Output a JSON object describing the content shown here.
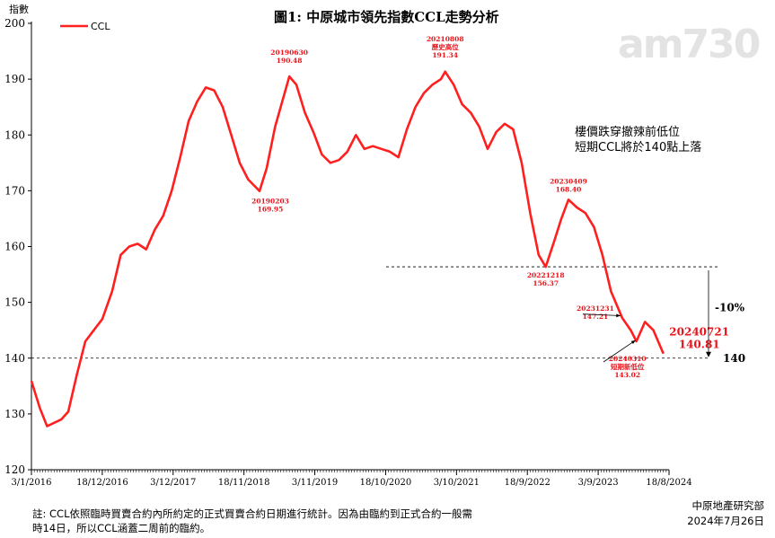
{
  "chart_data": {
    "type": "line",
    "title": "圖1: 中原城市領先指數CCL走勢分析",
    "ylabel": "指數",
    "ylim": [
      120,
      200
    ],
    "yticks": [
      120,
      130,
      140,
      150,
      160,
      170,
      180,
      190,
      200
    ],
    "xlim": [
      "2016-01-03",
      "2024-08-18"
    ],
    "xticks": [
      "3/1/2016",
      "18/12/2016",
      "3/12/2017",
      "18/11/2018",
      "3/11/2019",
      "18/10/2020",
      "3/10/2021",
      "18/9/2022",
      "3/9/2023",
      "18/8/2024"
    ],
    "grid": false,
    "legend": "top-left",
    "series": [
      {
        "name": "CCL",
        "color": "#ff1f1f",
        "points": [
          [
            "2016-01-03",
            135.9
          ],
          [
            "2016-02-14",
            131.0
          ],
          [
            "2016-03-20",
            127.8
          ],
          [
            "2016-04-24",
            128.4
          ],
          [
            "2016-05-29",
            129.0
          ],
          [
            "2016-07-03",
            130.4
          ],
          [
            "2016-08-14",
            137.0
          ],
          [
            "2016-09-25",
            143.0
          ],
          [
            "2016-11-06",
            145.0
          ],
          [
            "2016-12-18",
            147.0
          ],
          [
            "2017-02-05",
            152.0
          ],
          [
            "2017-03-19",
            158.5
          ],
          [
            "2017-04-30",
            160.0
          ],
          [
            "2017-06-11",
            160.5
          ],
          [
            "2017-07-23",
            159.5
          ],
          [
            "2017-09-03",
            163.0
          ],
          [
            "2017-10-15",
            165.5
          ],
          [
            "2017-11-26",
            170.0
          ],
          [
            "2018-01-07",
            176.0
          ],
          [
            "2018-02-18",
            182.5
          ],
          [
            "2018-04-01",
            186.0
          ],
          [
            "2018-05-13",
            188.5
          ],
          [
            "2018-06-24",
            188.0
          ],
          [
            "2018-08-05",
            185.0
          ],
          [
            "2018-09-16",
            180.0
          ],
          [
            "2018-10-28",
            175.0
          ],
          [
            "2018-12-09",
            172.0
          ],
          [
            "2019-02-03",
            169.95
          ],
          [
            "2019-03-10",
            174.0
          ],
          [
            "2019-04-21",
            181.5
          ],
          [
            "2019-05-26",
            186.0
          ],
          [
            "2019-06-30",
            190.48
          ],
          [
            "2019-08-04",
            189.0
          ],
          [
            "2019-09-15",
            184.0
          ],
          [
            "2019-10-27",
            180.5
          ],
          [
            "2019-12-08",
            176.5
          ],
          [
            "2020-01-19",
            175.0
          ],
          [
            "2020-03-01",
            175.5
          ],
          [
            "2020-04-12",
            177.0
          ],
          [
            "2020-05-24",
            180.0
          ],
          [
            "2020-07-05",
            177.5
          ],
          [
            "2020-08-16",
            178.0
          ],
          [
            "2020-09-27",
            177.5
          ],
          [
            "2020-11-08",
            177.0
          ],
          [
            "2020-12-20",
            176.0
          ],
          [
            "2021-01-31",
            181.0
          ],
          [
            "2021-03-14",
            185.0
          ],
          [
            "2021-04-25",
            187.5
          ],
          [
            "2021-06-06",
            189.0
          ],
          [
            "2021-07-18",
            190.0
          ],
          [
            "2021-08-08",
            191.34
          ],
          [
            "2021-09-19",
            189.0
          ],
          [
            "2021-10-31",
            185.5
          ],
          [
            "2021-12-12",
            184.0
          ],
          [
            "2022-01-23",
            181.5
          ],
          [
            "2022-03-06",
            177.5
          ],
          [
            "2022-04-17",
            180.5
          ],
          [
            "2022-05-29",
            182.0
          ],
          [
            "2022-07-10",
            181.0
          ],
          [
            "2022-08-21",
            175.0
          ],
          [
            "2022-10-02",
            166.0
          ],
          [
            "2022-11-13",
            158.5
          ],
          [
            "2022-12-18",
            156.37
          ],
          [
            "2023-01-29",
            161.0
          ],
          [
            "2023-03-05",
            165.0
          ],
          [
            "2023-04-09",
            168.4
          ],
          [
            "2023-05-21",
            167.0
          ],
          [
            "2023-07-02",
            166.0
          ],
          [
            "2023-08-13",
            163.5
          ],
          [
            "2023-09-24",
            158.5
          ],
          [
            "2023-11-05",
            152.0
          ],
          [
            "2023-12-31",
            147.21
          ],
          [
            "2024-02-11",
            145.0
          ],
          [
            "2024-03-10",
            143.02
          ],
          [
            "2024-04-21",
            146.5
          ],
          [
            "2024-06-02",
            145.0
          ],
          [
            "2024-07-21",
            140.81
          ]
        ]
      }
    ],
    "reference_lines": [
      {
        "y": 156.37,
        "style": "dashed"
      },
      {
        "y": 140,
        "style": "dashed",
        "label": "140"
      }
    ],
    "point_labels": [
      {
        "date": "2019-06-30",
        "text": [
          "20190630",
          "190.48"
        ]
      },
      {
        "date": "2021-08-08",
        "text": [
          "20210808",
          "歷史高位",
          "191.34"
        ]
      },
      {
        "date": "2019-02-03",
        "text": [
          "20190203",
          "169.95"
        ]
      },
      {
        "date": "2023-04-09",
        "text": [
          "20230409",
          "168.40"
        ]
      },
      {
        "date": "2022-12-18",
        "text": [
          "20221218",
          "156.37"
        ]
      },
      {
        "date": "2023-12-31",
        "text": [
          "20231231",
          "147.21"
        ]
      },
      {
        "date": "2024-03-10",
        "text": [
          "20240310",
          "短期新低位",
          "143.02"
        ]
      },
      {
        "date": "2024-07-21",
        "text": [
          "20240721",
          "140.81"
        ]
      }
    ],
    "side_labels": {
      "drop": "-10%",
      "level": "140"
    }
  },
  "annotation": {
    "line1": "樓價跌穿撤辣前低位",
    "line2": "短期CCL將於140點上落"
  },
  "watermark": "am730",
  "footnote": {
    "line1": "註: CCL依照臨時買賣合約內所約定的正式買賣合約日期進行統計。因為由臨約到正式合約一般需",
    "line2": "時14日，所以CCL涵蓋二周前的臨約。"
  },
  "source": {
    "org": "中原地產研究部",
    "date": "2024年7月26日"
  },
  "colors": {
    "line": "#ff1f1f",
    "label": "#e8141b",
    "axis": "#000000"
  }
}
